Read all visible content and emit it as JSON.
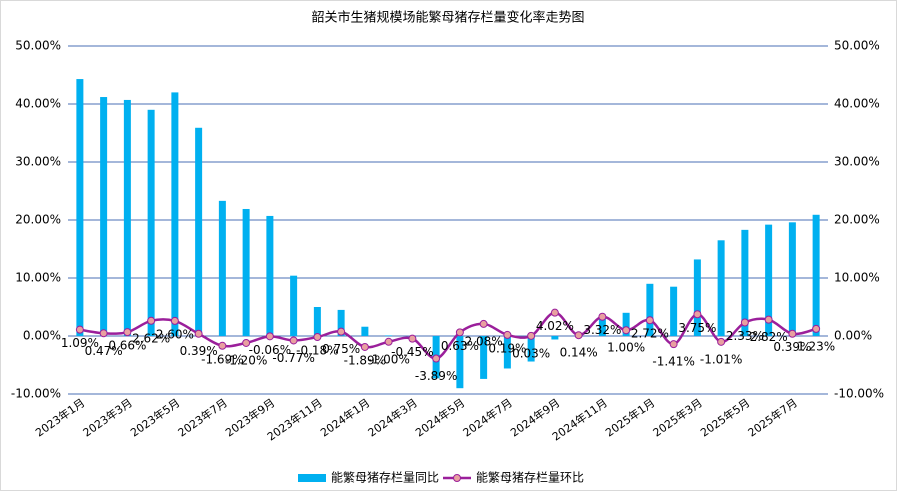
{
  "chart_data": {
    "type": "bar-line",
    "title": "韶关市生猪规模场能繁母猪存栏量变化率走势图",
    "categories": [
      "2023年1月",
      null,
      "2023年3月",
      null,
      "2023年5月",
      null,
      "2023年7月",
      null,
      "2023年9月",
      null,
      "2023年11月",
      null,
      "2024年1月",
      null,
      "2024年3月",
      null,
      "2024年5月",
      null,
      "2024年7月",
      null,
      "2024年9月",
      null,
      "2024年11月",
      null,
      "2025年1月",
      null,
      "2025年3月",
      null,
      "2025年5月",
      null,
      "2025年7月",
      null
    ],
    "series": [
      {
        "name": "能繁母猪存栏量同比",
        "color": "#00b0f0",
        "values": [
          44.3,
          41.2,
          40.7,
          39.0,
          42.0,
          35.9,
          23.3,
          21.9,
          20.7,
          10.4,
          5.0,
          4.5,
          1.6,
          0.1,
          -0.3,
          -7.3,
          -9.0,
          -7.4,
          -5.6,
          -4.4,
          -0.6,
          0.3,
          3.0,
          4.0,
          9.0,
          8.5,
          13.2,
          16.5,
          18.3,
          19.2,
          19.6,
          20.9
        ]
      },
      {
        "name": "能繁母猪存栏量环比",
        "color": "#9b1f9b",
        "marker_color": "#e8a0a0",
        "axis": "y2",
        "values": [
          1.09,
          0.47,
          0.66,
          2.62,
          2.6,
          0.39,
          -1.69,
          -1.2,
          -0.06,
          -0.77,
          -0.18,
          0.75,
          -1.89,
          -1.0,
          -0.45,
          -3.89,
          0.63,
          2.08,
          0.19,
          0.03,
          4.02,
          0.14,
          3.32,
          1.0,
          2.72,
          -1.41,
          3.75,
          -1.01,
          2.33,
          2.82,
          0.39,
          1.23
        ],
        "value_labels": [
          "1.09%",
          "0.47%",
          "0.66%",
          "2.62%",
          "2.60%",
          "0.39%",
          "-1.69%",
          "-1.20%",
          "-0.06%",
          "-0.77%",
          "-0.18%",
          "0.75%",
          "-1.89%",
          "-1.00%",
          "-0.45%",
          "-3.89%",
          "0.63%",
          "2.08%",
          "0.19%",
          "0.03%",
          "4.02%",
          "0.14%",
          "3.32%",
          "1.00%",
          "2.72%",
          "-1.41%",
          "3.75%",
          "-1.01%",
          "2.33%",
          "2.82%",
          "0.39%",
          "1.23%"
        ]
      }
    ],
    "ylim": [
      -10,
      50
    ],
    "yticks": [
      {
        "value": -10,
        "label": "-10.00%"
      },
      {
        "value": 0,
        "label": "0.00%"
      },
      {
        "value": 10,
        "label": "10.00%"
      },
      {
        "value": 20,
        "label": "20.00%"
      },
      {
        "value": 30,
        "label": "30.00%"
      },
      {
        "value": 40,
        "label": "40.00%"
      },
      {
        "value": 50,
        "label": "50.00%"
      }
    ],
    "y2lim": [
      -10,
      50
    ],
    "y2ticks": [
      {
        "value": -10,
        "label": "-10.00%"
      },
      {
        "value": 0,
        "label": "0.00%"
      },
      {
        "value": 10,
        "label": "10.00%"
      },
      {
        "value": 20,
        "label": "20.00%"
      },
      {
        "value": 30,
        "label": "30.00%"
      },
      {
        "value": 40,
        "label": "40.00%"
      },
      {
        "value": 50,
        "label": "50.00%"
      }
    ],
    "grid": true,
    "legend": "bottom"
  }
}
